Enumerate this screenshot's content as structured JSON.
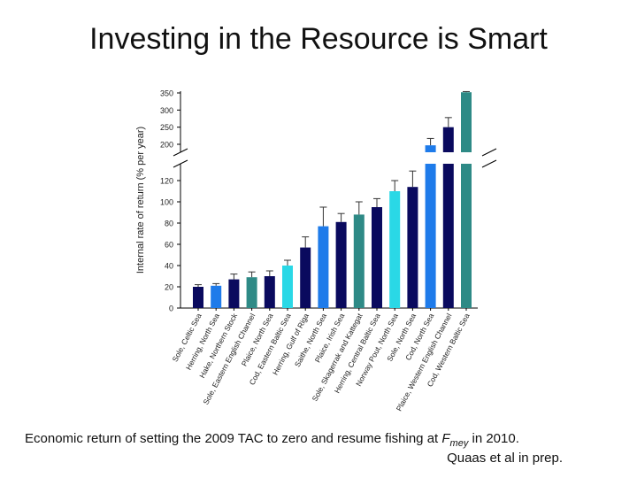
{
  "slide": {
    "title": "Investing in the Resource is Smart",
    "caption_pre": "Economic return of setting the 2009 TAC to zero and resume fishing at ",
    "caption_var": "F",
    "caption_sub": "mey",
    "caption_post": " in 2010.",
    "credit": "Quaas et al in prep."
  },
  "chart_data": {
    "type": "bar",
    "title": "",
    "xlabel": "",
    "ylabel": "Internal rate of return (% per year)",
    "axis_break": {
      "lower_range": [
        0,
        120
      ],
      "upper_range": [
        200,
        350
      ]
    },
    "yticks_lower": [
      0,
      20,
      40,
      60,
      80,
      100,
      120
    ],
    "yticks_upper": [
      200,
      250,
      300,
      350
    ],
    "categories": [
      "Sole, Celtic Sea",
      "Herring, North Sea",
      "Hake, Northern Stock",
      "Sole, Eastern English Channel",
      "Plaice, North Sea",
      "Cod, Eastern Baltic Sea",
      "Herring, Gulf of Riga",
      "Saithe, North Sea",
      "Plaice, Irish Sea",
      "Sole, Skagerrak and Kattegat",
      "Herring, Central Baltic Sea",
      "Norway Pout, North Sea",
      "Sole, North Sea",
      "Cod, North Sea",
      "Plaice, Western English Channel",
      "Cod, Western Baltic Sea"
    ],
    "values": [
      20,
      21,
      27,
      29,
      30,
      40,
      57,
      77,
      81,
      88,
      95,
      110,
      114,
      197,
      250,
      352
    ],
    "errors": [
      2,
      2,
      5,
      5,
      5,
      5,
      10,
      18,
      8,
      12,
      8,
      10,
      15,
      20,
      28,
      4
    ],
    "colors": [
      "#0a0a5e",
      "#1e7bea",
      "#0a0a5e",
      "#2e8a86",
      "#0a0a5e",
      "#2ad8e6",
      "#0a0a5e",
      "#1e7bea",
      "#0a0a5e",
      "#2e8a86",
      "#0a0a5e",
      "#2ad8e6",
      "#0a0a5e",
      "#1e7bea",
      "#0a0a5e",
      "#2e8a86"
    ]
  }
}
